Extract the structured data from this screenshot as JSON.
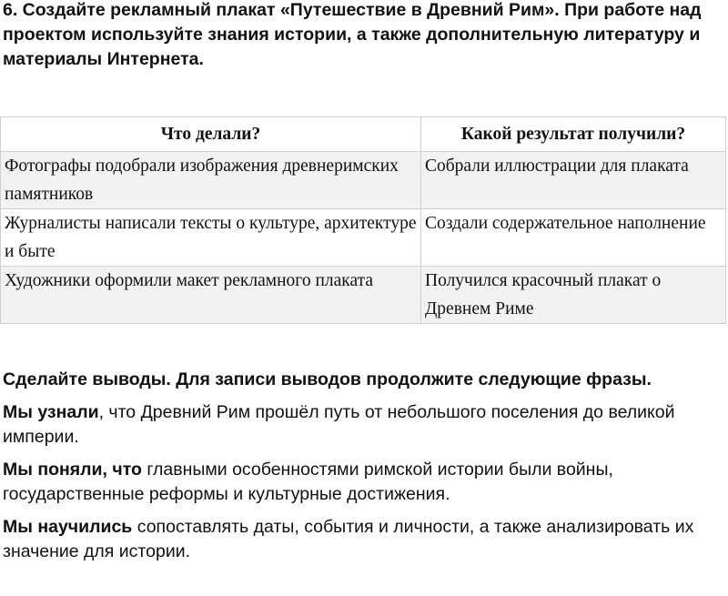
{
  "task": {
    "text": "6. Создайте рекламный плакат «Путешествие в Древний Рим». При работе над проектом используйте знания истории, а также дополнительную литературу и материалы Интернета."
  },
  "table": {
    "headers": [
      "Что делали?",
      "Какой результат получили?"
    ],
    "rows": [
      [
        "Фотографы подобрали изображения древнеримских памятников",
        "Собрали иллюстрации для плаката"
      ],
      [
        "Журналисты написали тексты о культуре, архитектуре и быте",
        "Создали содержательное наполнение"
      ],
      [
        "Художники оформили макет рекламного плаката",
        "Получился красочный плакат о Древнем Риме"
      ]
    ]
  },
  "conclusions": {
    "heading": "Сделайте выводы. Для записи выводов продолжите следующие фразы.",
    "items": [
      {
        "lead": "Мы узнали",
        "text": ", что Древний Рим прошёл путь от небольшого поселения до великой империи."
      },
      {
        "lead": "Мы поняли, что",
        "text": " главными особенностями римской истории были войны, государственные реформы и культурные достижения."
      },
      {
        "lead": "Мы научились",
        "text": " сопоставлять даты, события и личности, а также анализировать их значение для истории."
      }
    ]
  },
  "colors": {
    "row_alt": "#f2f2f2",
    "border": "#cfcfcf"
  }
}
